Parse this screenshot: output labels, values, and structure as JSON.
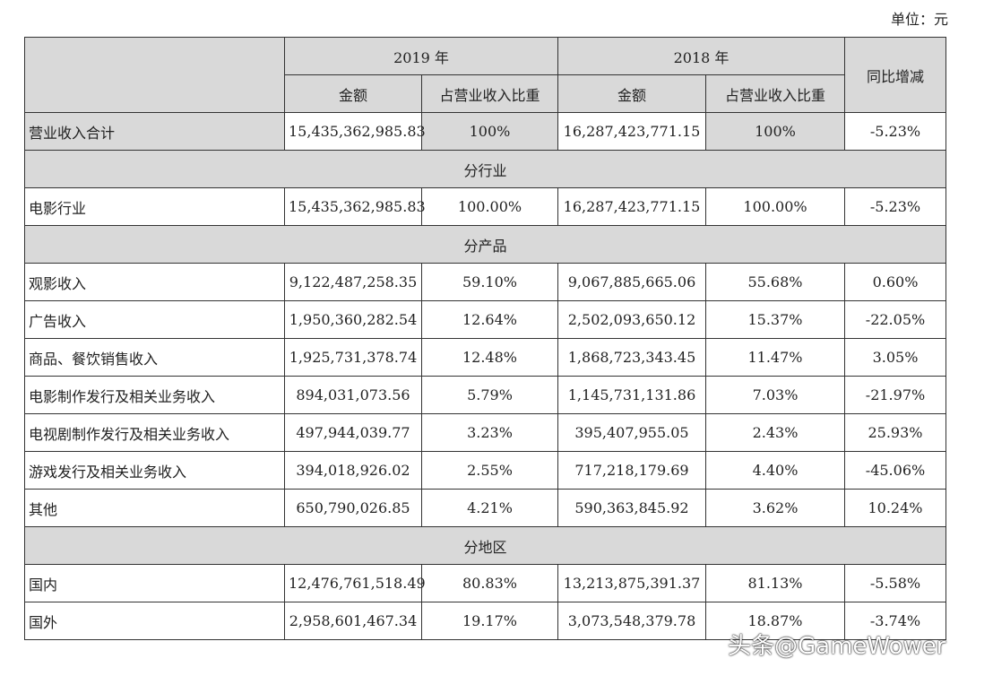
{
  "unit": "单位：元",
  "header": {
    "year1": "2019 年",
    "year2": "2018 年",
    "change": "同比增减",
    "amount": "金额",
    "share": "占营业收入比重"
  },
  "total": {
    "label": "营业收入合计",
    "a19": "15,435,362,985.83",
    "p19": "100%",
    "a18": "16,287,423,771.15",
    "p18": "100%",
    "chg": "-5.23%"
  },
  "sections": [
    {
      "title": "分行业",
      "rows": [
        {
          "label": "电影行业",
          "a19": "15,435,362,985.83",
          "p19": "100.00%",
          "a18": "16,287,423,771.15",
          "p18": "100.00%",
          "chg": "-5.23%"
        }
      ]
    },
    {
      "title": "分产品",
      "rows": [
        {
          "label": "观影收入",
          "a19": "9,122,487,258.35",
          "p19": "59.10%",
          "a18": "9,067,885,665.06",
          "p18": "55.68%",
          "chg": "0.60%"
        },
        {
          "label": "广告收入",
          "a19": "1,950,360,282.54",
          "p19": "12.64%",
          "a18": "2,502,093,650.12",
          "p18": "15.37%",
          "chg": "-22.05%"
        },
        {
          "label": "商品、餐饮销售收入",
          "a19": "1,925,731,378.74",
          "p19": "12.48%",
          "a18": "1,868,723,343.45",
          "p18": "11.47%",
          "chg": "3.05%"
        },
        {
          "label": "电影制作发行及相关业务收入",
          "a19": "894,031,073.56",
          "p19": "5.79%",
          "a18": "1,145,731,131.86",
          "p18": "7.03%",
          "chg": "-21.97%"
        },
        {
          "label": "电视剧制作发行及相关业务收入",
          "a19": "497,944,039.77",
          "p19": "3.23%",
          "a18": "395,407,955.05",
          "p18": "2.43%",
          "chg": "25.93%"
        },
        {
          "label": "游戏发行及相关业务收入",
          "a19": "394,018,926.02",
          "p19": "2.55%",
          "a18": "717,218,179.69",
          "p18": "4.40%",
          "chg": "-45.06%"
        },
        {
          "label": "其他",
          "a19": "650,790,026.85",
          "p19": "4.21%",
          "a18": "590,363,845.92",
          "p18": "3.62%",
          "chg": "10.24%"
        }
      ]
    },
    {
      "title": "分地区",
      "rows": [
        {
          "label": "国内",
          "a19": "12,476,761,518.49",
          "p19": "80.83%",
          "a18": "13,213,875,391.37",
          "p18": "81.13%",
          "chg": "-5.58%"
        },
        {
          "label": "国外",
          "a19": "2,958,601,467.34",
          "p19": "19.17%",
          "a18": "3,073,548,379.78",
          "p18": "18.87%",
          "chg": "-3.74%"
        }
      ]
    }
  ],
  "watermark": "头条@GameWower"
}
